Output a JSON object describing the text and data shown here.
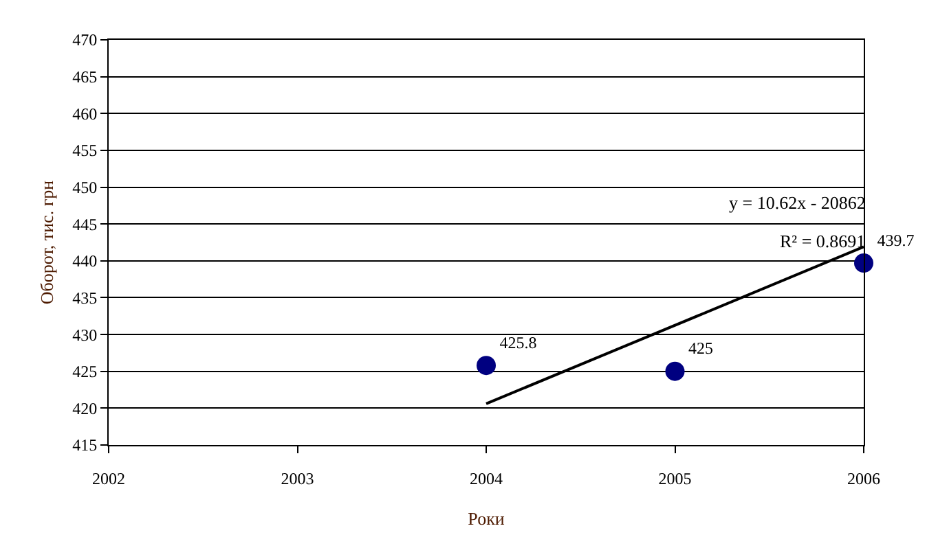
{
  "chart_data": {
    "type": "scatter",
    "xlabel": "Роки",
    "ylabel": "Оборот, тис. грн",
    "x": [
      2004,
      2005,
      2006
    ],
    "series": [
      {
        "type": "scatter",
        "color": "#000080",
        "values": [
          425.8,
          425,
          439.7
        ],
        "value_labels": [
          "425.8",
          "425",
          "439.7"
        ],
        "marker": "circle"
      },
      {
        "type": "line",
        "color": "#000000",
        "x": [
          2004,
          2006
        ],
        "values": [
          420.6,
          441.9
        ],
        "marker": "none",
        "line_style": "solid"
      }
    ],
    "annotations": [
      "y = 10.62x - 20862",
      "R² = 0.8691"
    ],
    "xlim": [
      2002,
      2006
    ],
    "xticks": [
      2002,
      2003,
      2004,
      2005,
      2006
    ],
    "ylim": [
      415,
      470
    ],
    "yticks": [
      415,
      420,
      425,
      430,
      435,
      440,
      445,
      450,
      455,
      460,
      465,
      470
    ],
    "grid": "y"
  }
}
